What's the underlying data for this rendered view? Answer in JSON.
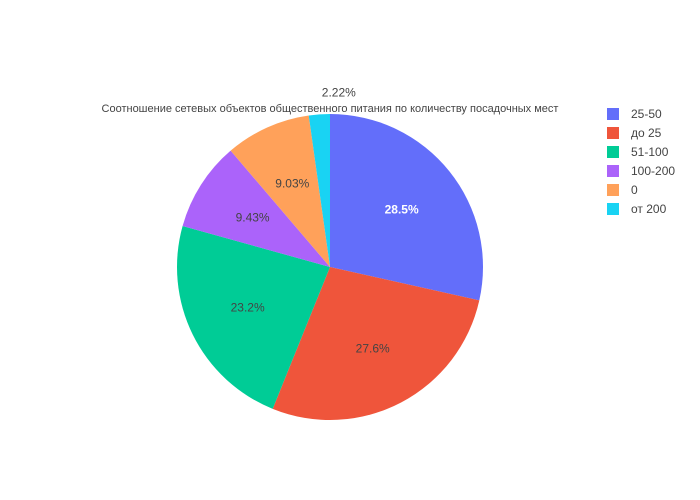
{
  "chart_data": {
    "type": "pie",
    "title": "Соотношение сетевых объектов общественного питания по количеству посадочных мест",
    "legend_position": "top-right",
    "slices": [
      {
        "label": "25-50",
        "value": 28.5,
        "text": "28.5%",
        "color": "#636efa"
      },
      {
        "label": "до 25",
        "value": 27.6,
        "text": "27.6%",
        "color": "#ef553b"
      },
      {
        "label": "51-100",
        "value": 23.2,
        "text": "23.2%",
        "color": "#00cc96"
      },
      {
        "label": "100-200",
        "value": 9.43,
        "text": "9.43%",
        "color": "#ab63fa"
      },
      {
        "label": "0",
        "value": 9.03,
        "text": "9.03%",
        "color": "#ffa15a"
      },
      {
        "label": "от 200",
        "value": 2.22,
        "text": "2.22%",
        "color": "#19d3f3"
      }
    ]
  }
}
